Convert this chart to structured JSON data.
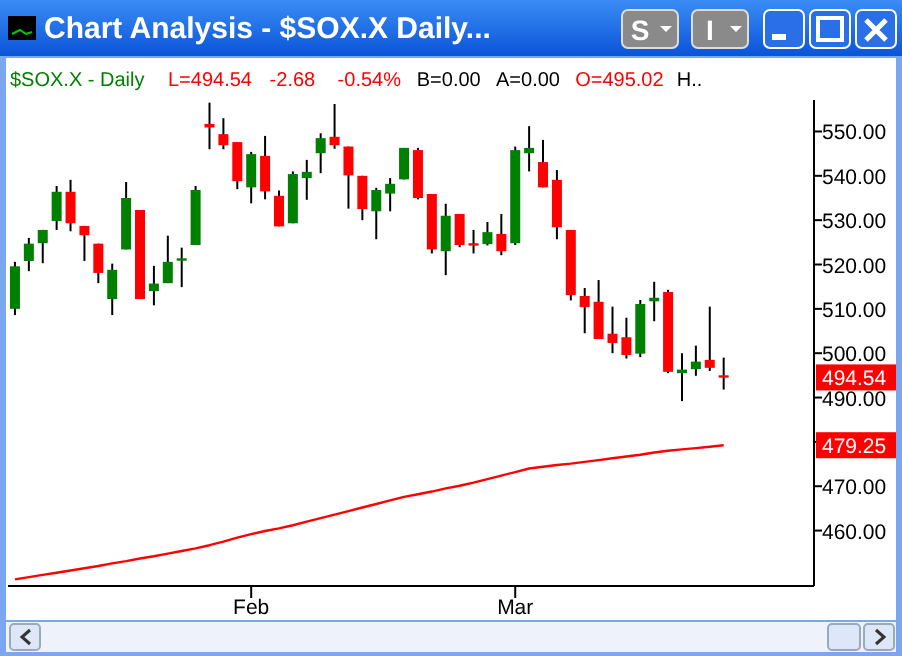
{
  "chart_data": {
    "type": "candlestick",
    "title": "Chart Analysis - $SOX.X  Daily...",
    "subtitle": "$SOX.X - Daily",
    "annotations": [
      "L=494.54",
      "-2.68",
      "-0.54%",
      "B=0.00",
      "A=0.00",
      "O=495.02",
      "H..",
      "494.54",
      "479.25",
      "S",
      "I"
    ],
    "categories": [
      null,
      null,
      null,
      null,
      null,
      null,
      null,
      null,
      null,
      null,
      null,
      null,
      null,
      null,
      null,
      null,
      null,
      "Feb",
      null,
      null,
      null,
      null,
      null,
      null,
      null,
      null,
      null,
      null,
      null,
      null,
      null,
      null,
      null,
      null,
      null,
      null,
      "Mar",
      null,
      null,
      null,
      null,
      null,
      null,
      null,
      null,
      null,
      null,
      null,
      null,
      null,
      null,
      null,
      null,
      null,
      null,
      null,
      null,
      null
    ],
    "ohlc": [
      [
        510.0,
        520.6,
        508.6,
        519.6
      ],
      [
        520.8,
        526.0,
        518.5,
        524.7
      ],
      [
        524.8,
        527.8,
        520.3,
        527.8
      ],
      [
        529.8,
        537.7,
        527.8,
        536.4
      ],
      [
        536.4,
        539.1,
        527.5,
        529.3
      ],
      [
        528.7,
        528.7,
        520.8,
        526.6
      ],
      [
        524.7,
        524.7,
        515.8,
        518.1
      ],
      [
        512.2,
        520.2,
        508.6,
        518.8
      ],
      [
        523.4,
        538.6,
        523.4,
        535.0
      ],
      [
        532.3,
        532.3,
        512.2,
        512.2
      ],
      [
        514.0,
        519.7,
        510.8,
        515.7
      ],
      [
        515.8,
        526.5,
        515.8,
        520.6
      ],
      [
        521.3,
        523.8,
        514.9,
        521.4
      ],
      [
        524.4,
        537.7,
        524.4,
        536.8
      ],
      [
        551.7,
        556.5,
        546.0,
        550.9
      ],
      [
        549.4,
        553.0,
        546.0,
        546.9
      ],
      [
        547.6,
        547.6,
        537.0,
        538.8
      ],
      [
        537.4,
        545.4,
        533.8,
        544.9
      ],
      [
        544.5,
        549.0,
        534.7,
        536.5
      ],
      [
        535.5,
        536.7,
        528.6,
        528.6
      ],
      [
        529.3,
        541.0,
        529.3,
        540.4
      ],
      [
        539.5,
        543.6,
        534.6,
        540.9
      ],
      [
        545.1,
        549.6,
        540.6,
        548.5
      ],
      [
        548.8,
        556.2,
        546.1,
        546.9
      ],
      [
        546.6,
        546.6,
        532.6,
        540.1
      ],
      [
        540.0,
        540.0,
        530.0,
        532.5
      ],
      [
        532.0,
        537.3,
        525.7,
        536.8
      ],
      [
        536.0,
        539.5,
        532.0,
        538.2
      ],
      [
        539.2,
        546.3,
        539.2,
        546.3
      ],
      [
        545.8,
        546.3,
        534.7,
        535.0
      ],
      [
        535.9,
        535.9,
        522.5,
        523.4
      ],
      [
        523.0,
        533.7,
        517.6,
        531.0
      ],
      [
        531.4,
        531.4,
        523.9,
        524.4
      ],
      [
        524.8,
        527.8,
        522.5,
        524.5
      ],
      [
        524.6,
        529.6,
        524.3,
        527.3
      ],
      [
        526.9,
        531.4,
        522.1,
        523.0
      ],
      [
        524.8,
        546.6,
        524.4,
        545.8
      ],
      [
        545.1,
        551.2,
        541.0,
        546.3
      ],
      [
        543.1,
        548.1,
        537.4,
        537.4
      ],
      [
        539.1,
        541.3,
        525.7,
        528.4
      ],
      [
        527.8,
        527.8,
        511.9,
        513.1
      ],
      [
        512.9,
        514.7,
        504.5,
        510.4
      ],
      [
        511.6,
        516.5,
        503.2,
        503.2
      ],
      [
        504.4,
        510.5,
        500.0,
        502.3
      ],
      [
        503.6,
        508.0,
        498.8,
        499.6
      ],
      [
        499.9,
        512.0,
        499.1,
        511.1
      ],
      [
        511.7,
        516.1,
        507.2,
        512.5
      ],
      [
        513.8,
        514.3,
        495.5,
        495.8
      ],
      [
        495.5,
        500.0,
        489.2,
        496.3
      ],
      [
        496.4,
        501.7,
        494.9,
        498.1
      ],
      [
        498.5,
        510.5,
        496.0,
        496.7
      ],
      [
        495.02,
        499.0,
        491.8,
        494.54
      ],
      null,
      null,
      null,
      null,
      null,
      null
    ],
    "series": [
      {
        "type": "line",
        "color": "#ff0000",
        "values": [
          449.0,
          449.5,
          450.0,
          450.5,
          451.0,
          451.5,
          452.0,
          452.6,
          453.1,
          453.7,
          454.2,
          454.8,
          455.4,
          456.0,
          456.7,
          457.5,
          458.4,
          459.2,
          459.9,
          460.5,
          461.2,
          462.0,
          462.8,
          463.6,
          464.4,
          465.2,
          466.0,
          466.8,
          467.6,
          468.2,
          468.8,
          469.5,
          470.1,
          470.8,
          471.6,
          472.4,
          473.2,
          474.0,
          474.4,
          474.8,
          475.1,
          475.5,
          475.9,
          476.3,
          476.7,
          477.1,
          477.6,
          478.0,
          478.3,
          478.6,
          478.9,
          479.25,
          null,
          null,
          null,
          null,
          null,
          null
        ]
      }
    ],
    "ylim": [
      447.5,
      557.1
    ],
    "yticks": [
      {
        "value": 460,
        "label": "460.00"
      },
      {
        "value": 470,
        "label": "470.00"
      },
      {
        "value": 480,
        "label": null
      },
      {
        "value": 490,
        "label": "490.00"
      },
      {
        "value": 500,
        "label": "500.00"
      },
      {
        "value": 510,
        "label": "510.00"
      },
      {
        "value": 520,
        "label": "520.00"
      },
      {
        "value": 530,
        "label": "530.00"
      },
      {
        "value": 540,
        "label": "540.00"
      },
      {
        "value": 550,
        "label": "550.00"
      }
    ]
  }
}
